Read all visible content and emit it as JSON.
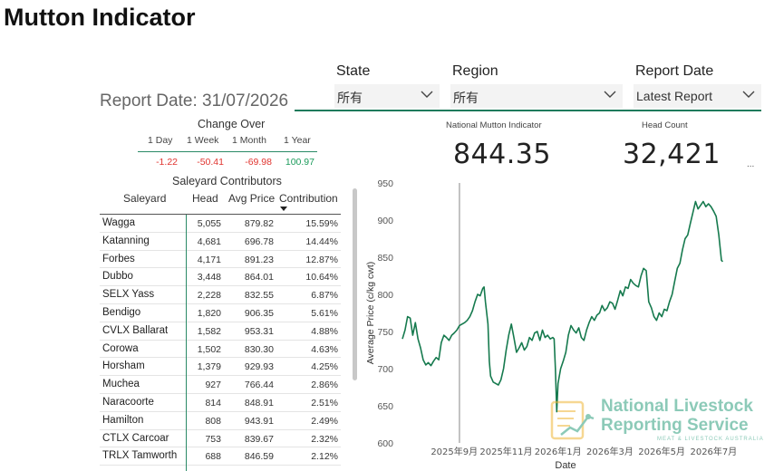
{
  "page": {
    "title": "Mutton Indicator"
  },
  "slicers": {
    "state": {
      "label": "State",
      "value": "所有"
    },
    "region": {
      "label": "Region",
      "value": "所有"
    },
    "report_date": {
      "label": "Report Date",
      "value": "Latest Report"
    }
  },
  "report_date_text": "Report Date: 31/07/2026",
  "cards": {
    "indicator": {
      "title": "National Mutton Indicator",
      "value": "844.35"
    },
    "head_count": {
      "title": "Head Count",
      "value": "32,421"
    },
    "more": "..."
  },
  "change_over": {
    "title": "Change Over",
    "headers": [
      "1 Day",
      "1 Week",
      "1 Month",
      "1 Year"
    ],
    "values": [
      {
        "text": "-1.22",
        "color": "#e0342f"
      },
      {
        "text": "-50.41",
        "color": "#e0342f"
      },
      {
        "text": "-69.98",
        "color": "#e0342f"
      },
      {
        "text": "100.97",
        "color": "#1a9a5a"
      }
    ]
  },
  "contributors": {
    "title": "Saleyard Contributors",
    "columns": [
      "Saleyard",
      "Head",
      "Avg Price",
      "Contribution"
    ],
    "rows": [
      {
        "name": "Wagga",
        "head": "5,055",
        "price": "879.82",
        "contrib": "15.59%"
      },
      {
        "name": "Katanning",
        "head": "4,681",
        "price": "696.78",
        "contrib": "14.44%"
      },
      {
        "name": "Forbes",
        "head": "4,171",
        "price": "891.23",
        "contrib": "12.87%"
      },
      {
        "name": "Dubbo",
        "head": "3,448",
        "price": "864.01",
        "contrib": "10.64%"
      },
      {
        "name": "SELX Yass",
        "head": "2,228",
        "price": "832.55",
        "contrib": "6.87%"
      },
      {
        "name": "Bendigo",
        "head": "1,820",
        "price": "906.35",
        "contrib": "5.61%"
      },
      {
        "name": "CVLX Ballarat",
        "head": "1,582",
        "price": "953.31",
        "contrib": "4.88%"
      },
      {
        "name": "Corowa",
        "head": "1,502",
        "price": "830.30",
        "contrib": "4.63%"
      },
      {
        "name": "Horsham",
        "head": "1,379",
        "price": "929.93",
        "contrib": "4.25%"
      },
      {
        "name": "Muchea",
        "head": "927",
        "price": "766.44",
        "contrib": "2.86%"
      },
      {
        "name": "Naracoorte",
        "head": "814",
        "price": "848.91",
        "contrib": "2.51%"
      },
      {
        "name": "Hamilton",
        "head": "808",
        "price": "943.91",
        "contrib": "2.49%"
      },
      {
        "name": "CTLX Carcoar",
        "head": "753",
        "price": "839.67",
        "contrib": "2.32%"
      },
      {
        "name": "TRLX Tamworth",
        "head": "688",
        "price": "846.59",
        "contrib": "2.12%"
      }
    ]
  },
  "watermark": {
    "line1": "National Livestock",
    "line2": "Reporting Service",
    "line3": "MEAT & LIVESTOCK AUSTRALIA"
  },
  "colors": {
    "accent": "#1e7b5c",
    "line": "#167a4e"
  },
  "chart_data": {
    "type": "line",
    "xlabel": "Date",
    "ylabel": "Average Price (c/kg cwt)",
    "ylim": [
      600,
      950
    ],
    "yticks": [
      600,
      650,
      700,
      750,
      800,
      850,
      900,
      950
    ],
    "xticks": [
      {
        "label": "2025年9月",
        "month": 2
      },
      {
        "label": "2025年11月",
        "month": 4
      },
      {
        "label": "2026年1月",
        "month": 6
      },
      {
        "label": "2026年3月",
        "month": 8
      },
      {
        "label": "2026年5月",
        "month": 10
      },
      {
        "label": "2026年7月",
        "month": 12
      }
    ],
    "xrange": [
      0,
      13.0
    ],
    "reference_line_month": 2.2,
    "grid": false,
    "series": [
      {
        "points": [
          [
            0.0,
            740
          ],
          [
            0.1,
            752
          ],
          [
            0.2,
            770
          ],
          [
            0.3,
            768
          ],
          [
            0.4,
            745
          ],
          [
            0.5,
            762
          ],
          [
            0.6,
            740
          ],
          [
            0.7,
            728
          ],
          [
            0.8,
            712
          ],
          [
            0.9,
            705
          ],
          [
            1.0,
            708
          ],
          [
            1.1,
            704
          ],
          [
            1.2,
            710
          ],
          [
            1.3,
            715
          ],
          [
            1.4,
            712
          ],
          [
            1.5,
            735
          ],
          [
            1.6,
            745
          ],
          [
            1.7,
            742
          ],
          [
            1.8,
            738
          ],
          [
            1.9,
            745
          ],
          [
            2.0,
            748
          ],
          [
            2.1,
            752
          ],
          [
            2.2,
            758
          ],
          [
            2.3,
            760
          ],
          [
            2.4,
            762
          ],
          [
            2.5,
            765
          ],
          [
            2.6,
            770
          ],
          [
            2.7,
            778
          ],
          [
            2.8,
            790
          ],
          [
            2.9,
            800
          ],
          [
            3.0,
            798
          ],
          [
            3.1,
            808
          ],
          [
            3.15,
            810
          ],
          [
            3.2,
            790
          ],
          [
            3.3,
            760
          ],
          [
            3.35,
            710
          ],
          [
            3.4,
            690
          ],
          [
            3.5,
            682
          ],
          [
            3.6,
            680
          ],
          [
            3.7,
            678
          ],
          [
            3.8,
            685
          ],
          [
            3.9,
            700
          ],
          [
            4.0,
            725
          ],
          [
            4.1,
            745
          ],
          [
            4.2,
            760
          ],
          [
            4.3,
            742
          ],
          [
            4.4,
            722
          ],
          [
            4.5,
            728
          ],
          [
            4.6,
            735
          ],
          [
            4.7,
            725
          ],
          [
            4.8,
            730
          ],
          [
            4.9,
            742
          ],
          [
            5.0,
            738
          ],
          [
            5.1,
            748
          ],
          [
            5.2,
            750
          ],
          [
            5.3,
            738
          ],
          [
            5.4,
            752
          ],
          [
            5.5,
            742
          ],
          [
            5.6,
            745
          ],
          [
            5.7,
            740
          ],
          [
            5.8,
            742
          ],
          [
            5.85,
            740
          ],
          [
            5.9,
            700
          ],
          [
            5.95,
            642
          ],
          [
            6.0,
            680
          ],
          [
            6.1,
            700
          ],
          [
            6.2,
            710
          ],
          [
            6.3,
            722
          ],
          [
            6.4,
            745
          ],
          [
            6.5,
            758
          ],
          [
            6.6,
            752
          ],
          [
            6.7,
            748
          ],
          [
            6.8,
            755
          ],
          [
            6.9,
            742
          ],
          [
            7.0,
            738
          ],
          [
            7.1,
            752
          ],
          [
            7.2,
            762
          ],
          [
            7.3,
            770
          ],
          [
            7.4,
            765
          ],
          [
            7.5,
            772
          ],
          [
            7.6,
            775
          ],
          [
            7.7,
            785
          ],
          [
            7.8,
            778
          ],
          [
            7.9,
            782
          ],
          [
            8.0,
            790
          ],
          [
            8.1,
            788
          ],
          [
            8.2,
            780
          ],
          [
            8.3,
            792
          ],
          [
            8.4,
            805
          ],
          [
            8.5,
            798
          ],
          [
            8.6,
            810
          ],
          [
            8.7,
            808
          ],
          [
            8.8,
            820
          ],
          [
            8.9,
            815
          ],
          [
            9.0,
            812
          ],
          [
            9.1,
            810
          ],
          [
            9.2,
            825
          ],
          [
            9.3,
            835
          ],
          [
            9.4,
            832
          ],
          [
            9.5,
            790
          ],
          [
            9.6,
            782
          ],
          [
            9.7,
            770
          ],
          [
            9.8,
            765
          ],
          [
            9.9,
            775
          ],
          [
            10.0,
            770
          ],
          [
            10.1,
            780
          ],
          [
            10.2,
            778
          ],
          [
            10.3,
            790
          ],
          [
            10.4,
            800
          ],
          [
            10.5,
            818
          ],
          [
            10.6,
            835
          ],
          [
            10.7,
            842
          ],
          [
            10.8,
            860
          ],
          [
            10.9,
            875
          ],
          [
            11.0,
            880
          ],
          [
            11.1,
            895
          ],
          [
            11.2,
            910
          ],
          [
            11.3,
            925
          ],
          [
            11.4,
            915
          ],
          [
            11.5,
            920
          ],
          [
            11.6,
            925
          ],
          [
            11.7,
            918
          ],
          [
            11.8,
            922
          ],
          [
            11.9,
            918
          ],
          [
            12.0,
            912
          ],
          [
            12.1,
            905
          ],
          [
            12.2,
            880
          ],
          [
            12.3,
            846
          ],
          [
            12.35,
            844
          ]
        ]
      }
    ]
  }
}
